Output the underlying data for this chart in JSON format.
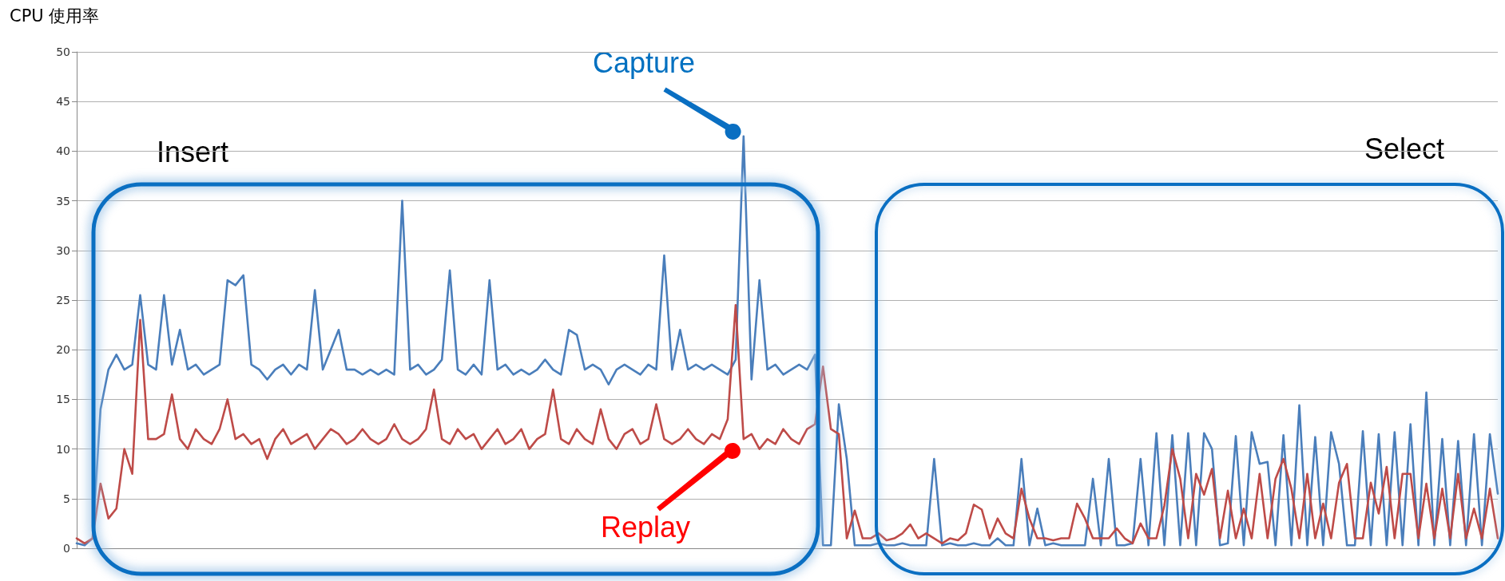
{
  "chart_data": {
    "type": "line",
    "ylabel": "CPU 使用率",
    "annotations": [
      "Insert",
      "Select"
    ],
    "categories": [
      null,
      null,
      null,
      null,
      null,
      null,
      null,
      null,
      null,
      null,
      null,
      null,
      null,
      null,
      null,
      null,
      null,
      null,
      null,
      null,
      null,
      null,
      null,
      null,
      null,
      null,
      null,
      null,
      null,
      null,
      null,
      null,
      null,
      null,
      null,
      null,
      null,
      null,
      null,
      null,
      null,
      null,
      null,
      null,
      null,
      null,
      null,
      null,
      null,
      null,
      null,
      null,
      null,
      null,
      null,
      null,
      null,
      null,
      null,
      null,
      null,
      null,
      null,
      null,
      null,
      null,
      null,
      null,
      null,
      null,
      null,
      null,
      null,
      null,
      null,
      null,
      null,
      null,
      null,
      null,
      null,
      null,
      null,
      null,
      null,
      null,
      null,
      null,
      null,
      null,
      null,
      null,
      null,
      null,
      null,
      null,
      null,
      null,
      null,
      null,
      null,
      null,
      null,
      null,
      null,
      null,
      null,
      null,
      null,
      null,
      null,
      null,
      null,
      null,
      null,
      null,
      null,
      null,
      null,
      null,
      null,
      null,
      null,
      null,
      null,
      null,
      null,
      null,
      null,
      null,
      null,
      null,
      null,
      null,
      null,
      null,
      null,
      null,
      null,
      null,
      null,
      null,
      null,
      null,
      null,
      null,
      null,
      null,
      null,
      null,
      null,
      null,
      null,
      null,
      null,
      null,
      null,
      null,
      null,
      null,
      null,
      null,
      null,
      null,
      null,
      null,
      null,
      null,
      null,
      null,
      null,
      null,
      null,
      null,
      null,
      null,
      null,
      null,
      null,
      null
    ],
    "series": [
      {
        "name": "Capture",
        "color": "#4a7ebb",
        "values": [
          0.5,
          0.3,
          1,
          14,
          18,
          19.5,
          18,
          18.5,
          25.5,
          18.5,
          18,
          25.5,
          18.5,
          22,
          18,
          18.5,
          17.5,
          18,
          18.5,
          27,
          26.5,
          27.5,
          18.5,
          18,
          17,
          18,
          18.5,
          17.5,
          18.5,
          18,
          26,
          18,
          20,
          22,
          18,
          18,
          17.5,
          18,
          17.5,
          18,
          17.5,
          35,
          18,
          18.5,
          17.5,
          18,
          19,
          28,
          18,
          17.5,
          18.5,
          17.5,
          27,
          18,
          18.5,
          17.5,
          18,
          17.5,
          18,
          19,
          18,
          17.5,
          22,
          21.5,
          18,
          18.5,
          18,
          16.5,
          18,
          18.5,
          18,
          17.5,
          18.5,
          18,
          29.5,
          18,
          22,
          18,
          18.5,
          18,
          18.5,
          18,
          17.5,
          19,
          41.5,
          17,
          27,
          18,
          18.5,
          17.5,
          18,
          18.5,
          18,
          19.5,
          0.3,
          0.3,
          14.5,
          9,
          0.3,
          0.3,
          0.3,
          0.5,
          0.3,
          0.3,
          0.5,
          0.3,
          0.3,
          0.3,
          9,
          0.3,
          0.5,
          0.3,
          0.3,
          0.5,
          0.3,
          0.3,
          1,
          0.3,
          0.3,
          9,
          0.3,
          4,
          0.3,
          0.5,
          0.3,
          0.3,
          0.3,
          0.3,
          7,
          0.3,
          9,
          0.3,
          0.3,
          0.5,
          9,
          0.3,
          11.6,
          0.3,
          11.4,
          0.3,
          11.6,
          0.3,
          11.6,
          10,
          0.3,
          0.5,
          11.3,
          0.3,
          11.7,
          8.5,
          8.7,
          0.3,
          11.4,
          0.3,
          14.4,
          0.3,
          11.2,
          0.3,
          11.7,
          8.5,
          0.3,
          0.3,
          11.8,
          0.3,
          11.5,
          0.3,
          11.7,
          0.3,
          12.5,
          0.3,
          15.7,
          0.3,
          11,
          0.3,
          10.8,
          0.3,
          11.5,
          0.3,
          11.5,
          5.5
        ]
      },
      {
        "name": "Replay",
        "color": "#be4b48",
        "values": [
          1,
          0.5,
          1,
          6.5,
          3,
          4,
          10,
          7.5,
          23,
          11,
          11,
          11.5,
          15.5,
          11,
          10,
          12,
          11,
          10.5,
          12,
          15,
          11,
          11.5,
          10.5,
          11,
          9,
          11,
          12,
          10.5,
          11,
          11.5,
          10,
          11,
          12,
          11.5,
          10.5,
          11,
          12,
          11,
          10.5,
          11,
          12.5,
          11,
          10.5,
          11,
          12,
          16,
          11,
          10.5,
          12,
          11,
          11.5,
          10,
          11,
          12,
          10.5,
          11,
          12,
          10,
          11,
          11.5,
          16,
          11,
          10.5,
          12,
          11,
          10.5,
          14,
          11,
          10,
          11.5,
          12,
          10.5,
          11,
          14.5,
          11,
          10.5,
          11,
          12,
          11,
          10.5,
          11.5,
          11,
          13,
          24.5,
          11,
          11.5,
          10,
          11,
          10.5,
          12,
          11,
          10.5,
          12,
          12.5,
          18.3,
          12,
          11.5,
          1,
          3.8,
          1,
          1,
          1.5,
          0.8,
          1,
          1.5,
          2.4,
          1,
          1.5,
          1,
          0.5,
          1,
          0.8,
          1.5,
          4.4,
          3.9,
          1,
          3,
          1.5,
          1,
          6,
          3,
          1,
          1,
          0.8,
          1,
          1,
          4.5,
          3,
          1,
          1,
          1,
          2,
          1,
          0.5,
          2.5,
          1,
          1,
          4.3,
          10,
          7,
          1,
          7.5,
          5.4,
          8,
          1,
          5.8,
          1,
          4,
          1,
          7.5,
          1,
          7,
          9,
          6,
          1,
          7.5,
          1,
          4.5,
          1,
          6.6,
          8.5,
          1,
          1,
          6.6,
          3.5,
          8.2,
          1,
          7.5,
          7.5,
          1,
          6.5,
          1,
          6,
          1,
          7.5,
          1,
          4,
          1,
          6,
          1
        ]
      }
    ],
    "ylim": [
      0,
      50
    ],
    "yticks": [
      0,
      5,
      10,
      15,
      20,
      25,
      30,
      35,
      40,
      45,
      50
    ],
    "grid": "y",
    "marker": "none",
    "legend": false
  }
}
